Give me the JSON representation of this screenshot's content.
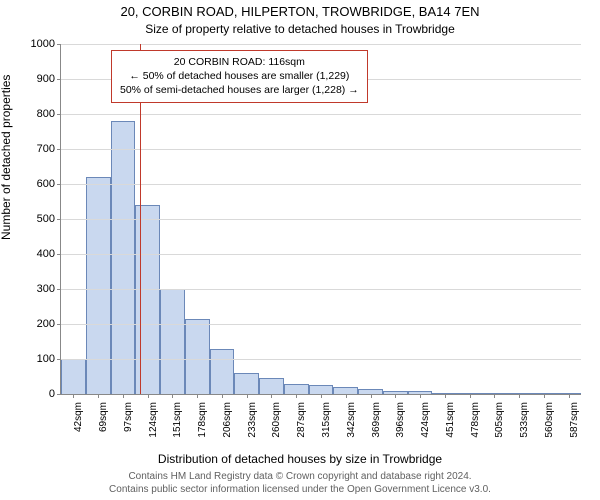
{
  "title": "20, CORBIN ROAD, HILPERTON, TROWBRIDGE, BA14 7EN",
  "subtitle": "Size of property relative to detached houses in Trowbridge",
  "ylabel": "Number of detached properties",
  "xlabel": "Distribution of detached houses by size in Trowbridge",
  "footer_line1": "Contains HM Land Registry data © Crown copyright and database right 2024.",
  "footer_line2": "Contains public sector information licensed under the Open Government Licence v3.0.",
  "chart": {
    "type": "histogram",
    "ylim": [
      0,
      1000
    ],
    "ytick_step": 100,
    "yticks": [
      0,
      100,
      200,
      300,
      400,
      500,
      600,
      700,
      800,
      900,
      1000
    ],
    "bar_fill": "#c9d8ef",
    "bar_stroke": "#6b88b8",
    "background_color": "#ffffff",
    "grid_color": "#d9d9d9",
    "axis_color": "#888888",
    "bar_width_ratio": 1.0,
    "vline_color": "#c0392b",
    "vline_width": 1.5,
    "vline_x": 116,
    "x_categories": [
      "42sqm",
      "69sqm",
      "97sqm",
      "124sqm",
      "151sqm",
      "178sqm",
      "206sqm",
      "233sqm",
      "260sqm",
      "287sqm",
      "315sqm",
      "342sqm",
      "369sqm",
      "396sqm",
      "424sqm",
      "451sqm",
      "478sqm",
      "505sqm",
      "533sqm",
      "560sqm",
      "587sqm"
    ],
    "values": [
      100,
      620,
      780,
      540,
      300,
      215,
      130,
      60,
      45,
      30,
      25,
      20,
      15,
      10,
      10,
      0,
      0,
      0,
      0,
      0,
      0
    ]
  },
  "callout": {
    "border_color": "#c0392b",
    "line1": "20 CORBIN ROAD: 116sqm",
    "line2": "← 50% of detached houses are smaller (1,229)",
    "line3": "50% of semi-detached houses are larger (1,228) →"
  }
}
